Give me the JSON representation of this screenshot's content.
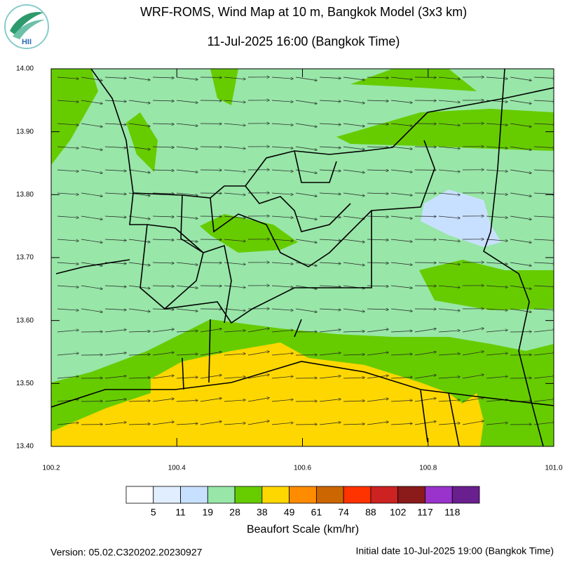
{
  "header": {
    "title": "WRF-ROMS, Wind Map at 10 m, Bangkok Model (3x3 km)",
    "subtitle": "11-Jul-2025 16:00 (Bangkok Time)",
    "logo_text": "HII"
  },
  "map": {
    "xlim": [
      100.2,
      101.0
    ],
    "ylim": [
      13.4,
      14.0
    ],
    "xticks": [
      100.2,
      100.4,
      100.6,
      100.8,
      {
        "value": 101,
        "label": "101.0"
      }
    ],
    "yticks": [
      {
        "value": 13.4,
        "label": "13.40"
      },
      {
        "value": 13.5,
        "label": "13.50"
      },
      {
        "value": 13.6,
        "label": "13.60"
      },
      {
        "value": 13.7,
        "label": "13.70"
      },
      {
        "value": 13.8,
        "label": "13.80"
      },
      {
        "value": 13.9,
        "label": "13.90"
      },
      {
        "value": 14,
        "label": "14.00"
      }
    ]
  },
  "legend": {
    "title": "Beaufort Scale (km/hr)",
    "colors": [
      "#ffffff",
      "#e0eeff",
      "#c8e0ff",
      "#98e6a8",
      "#66cc00",
      "#ffd700",
      "#ff8c00",
      "#cc6600",
      "#ff3300",
      "#cc2222",
      "#8b1a1a",
      "#9933cc",
      "#6a1f8f"
    ],
    "labels": [
      5,
      11,
      19,
      28,
      38,
      49,
      61,
      74,
      88,
      102,
      117,
      118
    ]
  },
  "footer": {
    "version": "Version: 05.02.C320202.20230927",
    "initial_date": "Initial date 10-Jul-2025 19:00 (Bangkok Time)"
  }
}
